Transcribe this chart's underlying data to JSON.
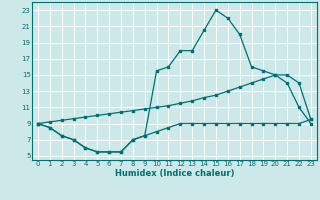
{
  "xlabel": "Humidex (Indice chaleur)",
  "bg_color": "#cce8e8",
  "grid_color": "#ffffff",
  "line_color": "#007070",
  "xlim": [
    -0.5,
    23.5
  ],
  "ylim": [
    4.5,
    24.0
  ],
  "xticks": [
    0,
    1,
    2,
    3,
    4,
    5,
    6,
    7,
    8,
    9,
    10,
    11,
    12,
    13,
    14,
    15,
    16,
    17,
    18,
    19,
    20,
    21,
    22,
    23
  ],
  "yticks": [
    5,
    7,
    9,
    11,
    13,
    15,
    17,
    19,
    21,
    23
  ],
  "line1_x": [
    0,
    1,
    2,
    3,
    4,
    5,
    6,
    7,
    8,
    9,
    10,
    11,
    12,
    13,
    14,
    15,
    16,
    17,
    18,
    19,
    20,
    21,
    22,
    23
  ],
  "line1_y": [
    9,
    8.5,
    7.5,
    7.0,
    6.0,
    5.5,
    5.5,
    5.5,
    7.0,
    7.5,
    8.0,
    8.5,
    9.0,
    9.0,
    9.0,
    9.0,
    9.0,
    9.0,
    9.0,
    9.0,
    9.0,
    9.0,
    9.0,
    9.5
  ],
  "line2_x": [
    0,
    1,
    2,
    3,
    4,
    5,
    6,
    7,
    8,
    9,
    10,
    11,
    12,
    13,
    14,
    15,
    16,
    17,
    18,
    19,
    20,
    21,
    22,
    23
  ],
  "line2_y": [
    9.0,
    9.2,
    9.4,
    9.6,
    9.8,
    10.0,
    10.2,
    10.4,
    10.6,
    10.8,
    11.0,
    11.2,
    11.5,
    11.8,
    12.2,
    12.5,
    13.0,
    13.5,
    14.0,
    14.5,
    15.0,
    15.0,
    14.0,
    9.5
  ],
  "line3_x": [
    0,
    1,
    2,
    3,
    4,
    5,
    6,
    7,
    8,
    9,
    10,
    11,
    12,
    13,
    14,
    15,
    16,
    17,
    18,
    19,
    20,
    21,
    22,
    23
  ],
  "line3_y": [
    9.0,
    8.5,
    7.5,
    7.0,
    6.0,
    5.5,
    5.5,
    5.5,
    7.0,
    7.5,
    15.5,
    16.0,
    18.0,
    18.0,
    20.5,
    23.0,
    22.0,
    20.0,
    16.0,
    15.5,
    15.0,
    14.0,
    11.0,
    9.0
  ]
}
